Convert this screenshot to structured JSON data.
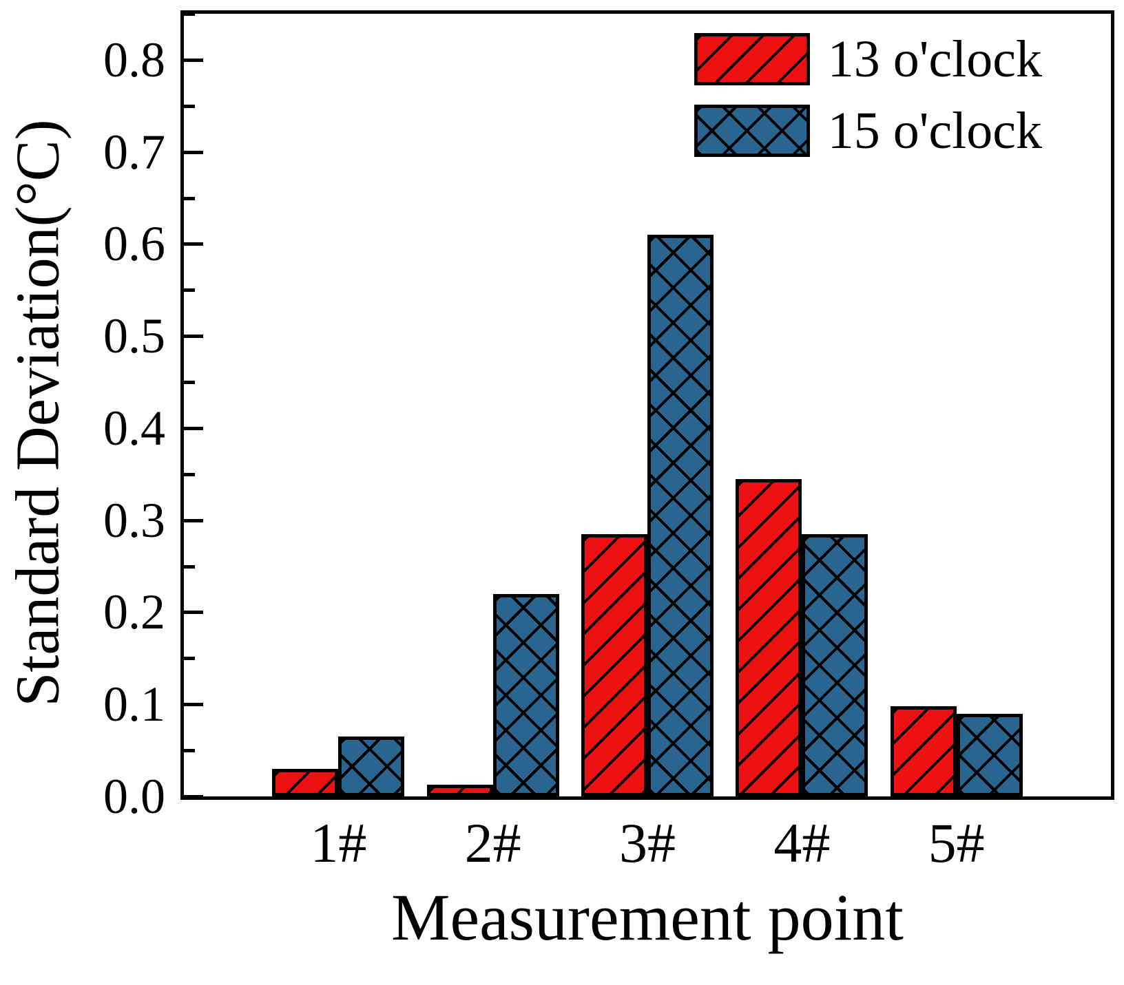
{
  "figure": {
    "background": "#ffffff",
    "axis_color": "#000000"
  },
  "chart_data": {
    "type": "bar",
    "title": "",
    "xlabel": "Measurement point",
    "ylabel": "Standard Deviation(°C)",
    "categories": [
      "1#",
      "2#",
      "3#",
      "4#",
      "5#"
    ],
    "series": [
      {
        "name": "13 o'clock",
        "color": "#ee1111",
        "pattern": "diagonal",
        "values": [
          0.03,
          0.013,
          0.285,
          0.345,
          0.098
        ]
      },
      {
        "name": "15 o'clock",
        "color": "#29658f",
        "pattern": "crosshatch",
        "values": [
          0.065,
          0.22,
          0.61,
          0.285,
          0.09
        ]
      }
    ],
    "ylim": [
      0,
      0.85
    ],
    "y_major_step": 0.1,
    "y_minor_step": 0.05,
    "y_tick_decimals": 1,
    "grid": false,
    "legend_position": "top-right",
    "hatch_color": "#000000"
  }
}
